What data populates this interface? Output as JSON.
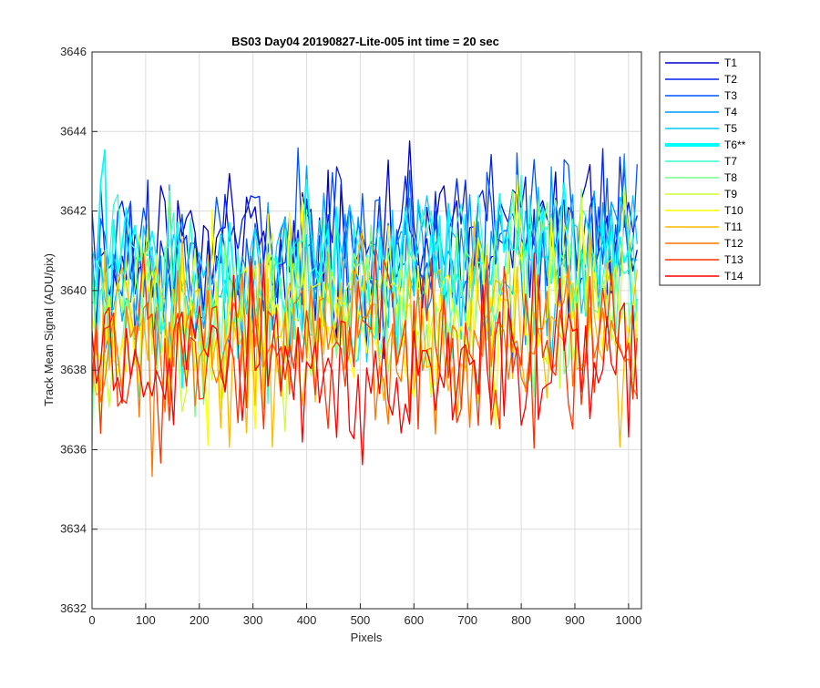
{
  "chart_data": {
    "type": "line",
    "title": "BS03 Day04 20190827-Lite-005 int time = 20 sec",
    "xlabel": "Pixels",
    "ylabel": "Track Mean Signal (ADU/pix)",
    "xlim": [
      0,
      1024
    ],
    "ylim": [
      3632,
      3646
    ],
    "xticks": [
      0,
      100,
      200,
      300,
      400,
      500,
      600,
      700,
      800,
      900,
      1000
    ],
    "yticks": [
      3632,
      3634,
      3636,
      3638,
      3640,
      3642,
      3644,
      3646
    ],
    "grid": true,
    "legend_position": "outside-right",
    "x_step": 8,
    "series": [
      {
        "name": "T1",
        "color": "#0000cc",
        "width": 1.5,
        "base_start": 3640.4,
        "base_end": 3641.3,
        "amplitude": 1.9,
        "bias": 0.8
      },
      {
        "name": "T2",
        "color": "#0022ee",
        "width": 1.5,
        "base_start": 3640.3,
        "base_end": 3641.2,
        "amplitude": 1.9,
        "bias": 0.7
      },
      {
        "name": "T3",
        "color": "#0055ff",
        "width": 1.5,
        "base_start": 3640.2,
        "base_end": 3641.0,
        "amplitude": 1.9,
        "bias": 0.6
      },
      {
        "name": "T4",
        "color": "#0099ff",
        "width": 1.5,
        "base_start": 3640.0,
        "base_end": 3640.9,
        "amplitude": 2.0,
        "bias": 0.5
      },
      {
        "name": "T5",
        "color": "#00ccff",
        "width": 1.5,
        "base_start": 3639.9,
        "base_end": 3640.8,
        "amplitude": 2.0,
        "bias": 0.4
      },
      {
        "name": "T6**",
        "color": "#00ffff",
        "width": 4.0,
        "base_start": 3639.8,
        "base_end": 3640.6,
        "amplitude": 2.1,
        "bias": 0.3
      },
      {
        "name": "T7",
        "color": "#33ffcc",
        "width": 1.5,
        "base_start": 3639.7,
        "base_end": 3640.4,
        "amplitude": 2.1,
        "bias": 0.2
      },
      {
        "name": "T8",
        "color": "#77ff88",
        "width": 1.5,
        "base_start": 3639.5,
        "base_end": 3640.2,
        "amplitude": 2.2,
        "bias": 0.1
      },
      {
        "name": "T9",
        "color": "#ccff33",
        "width": 1.5,
        "base_start": 3639.3,
        "base_end": 3639.9,
        "amplitude": 2.3,
        "bias": 0.0
      },
      {
        "name": "T10",
        "color": "#ffff00",
        "width": 1.5,
        "base_start": 3639.0,
        "base_end": 3639.6,
        "amplitude": 2.5,
        "bias": -0.1
      },
      {
        "name": "T11",
        "color": "#ffbb00",
        "width": 1.5,
        "base_start": 3638.8,
        "base_end": 3639.3,
        "amplitude": 2.3,
        "bias": -0.2
      },
      {
        "name": "T12",
        "color": "#ff7700",
        "width": 1.5,
        "base_start": 3638.6,
        "base_end": 3639.0,
        "amplitude": 2.2,
        "bias": -0.3
      },
      {
        "name": "T13",
        "color": "#ff3300",
        "width": 1.5,
        "base_start": 3638.4,
        "base_end": 3638.8,
        "amplitude": 2.1,
        "bias": -0.4
      },
      {
        "name": "T14",
        "color": "#ff0000",
        "width": 1.5,
        "base_start": 3638.2,
        "base_end": 3638.6,
        "amplitude": 2.0,
        "bias": -0.5
      }
    ]
  }
}
